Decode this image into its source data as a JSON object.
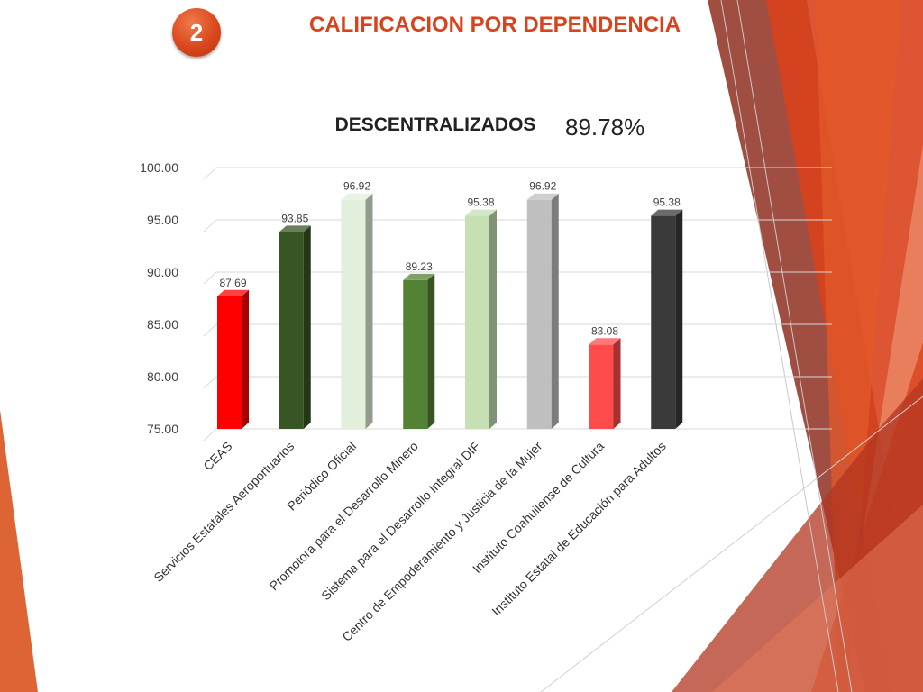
{
  "slide": {
    "number": "2",
    "title": "CALIFICACION POR DEPENDENCIA"
  },
  "chart_data": {
    "type": "bar",
    "title": "DESCENTRALIZADOS",
    "annotation": "89.78%",
    "categories": [
      "CEAS",
      "Servicios Estatales Aeroportuarios",
      "Periódico Oficial",
      "Promotora para el Desarrollo Minero",
      "Sistema para el Desarrollo Integral DIF",
      "Centro de Empoderamiento y Justicia de la Mujer",
      "Instituto Coahuilense de Cultura",
      "Instituto Estatal de Educación para Adultos"
    ],
    "values": [
      87.69,
      93.85,
      96.92,
      89.23,
      95.38,
      96.92,
      83.08,
      95.38
    ],
    "value_labels": [
      "87.69",
      "93.85",
      "96.92",
      "89.23",
      "95.38",
      "96.92",
      "83.08",
      "95.38"
    ],
    "bar_colors": [
      "#ff0000",
      "#375623",
      "#e2efda",
      "#548235",
      "#c6e0b4",
      "#bfbfbf",
      "#ff4b4b",
      "#3a3a3a"
    ],
    "ylim": [
      75,
      100
    ],
    "yticks": [
      "75.00",
      "80.00",
      "85.00",
      "90.00",
      "95.00",
      "100.00"
    ],
    "grid": true,
    "legend": "none"
  }
}
